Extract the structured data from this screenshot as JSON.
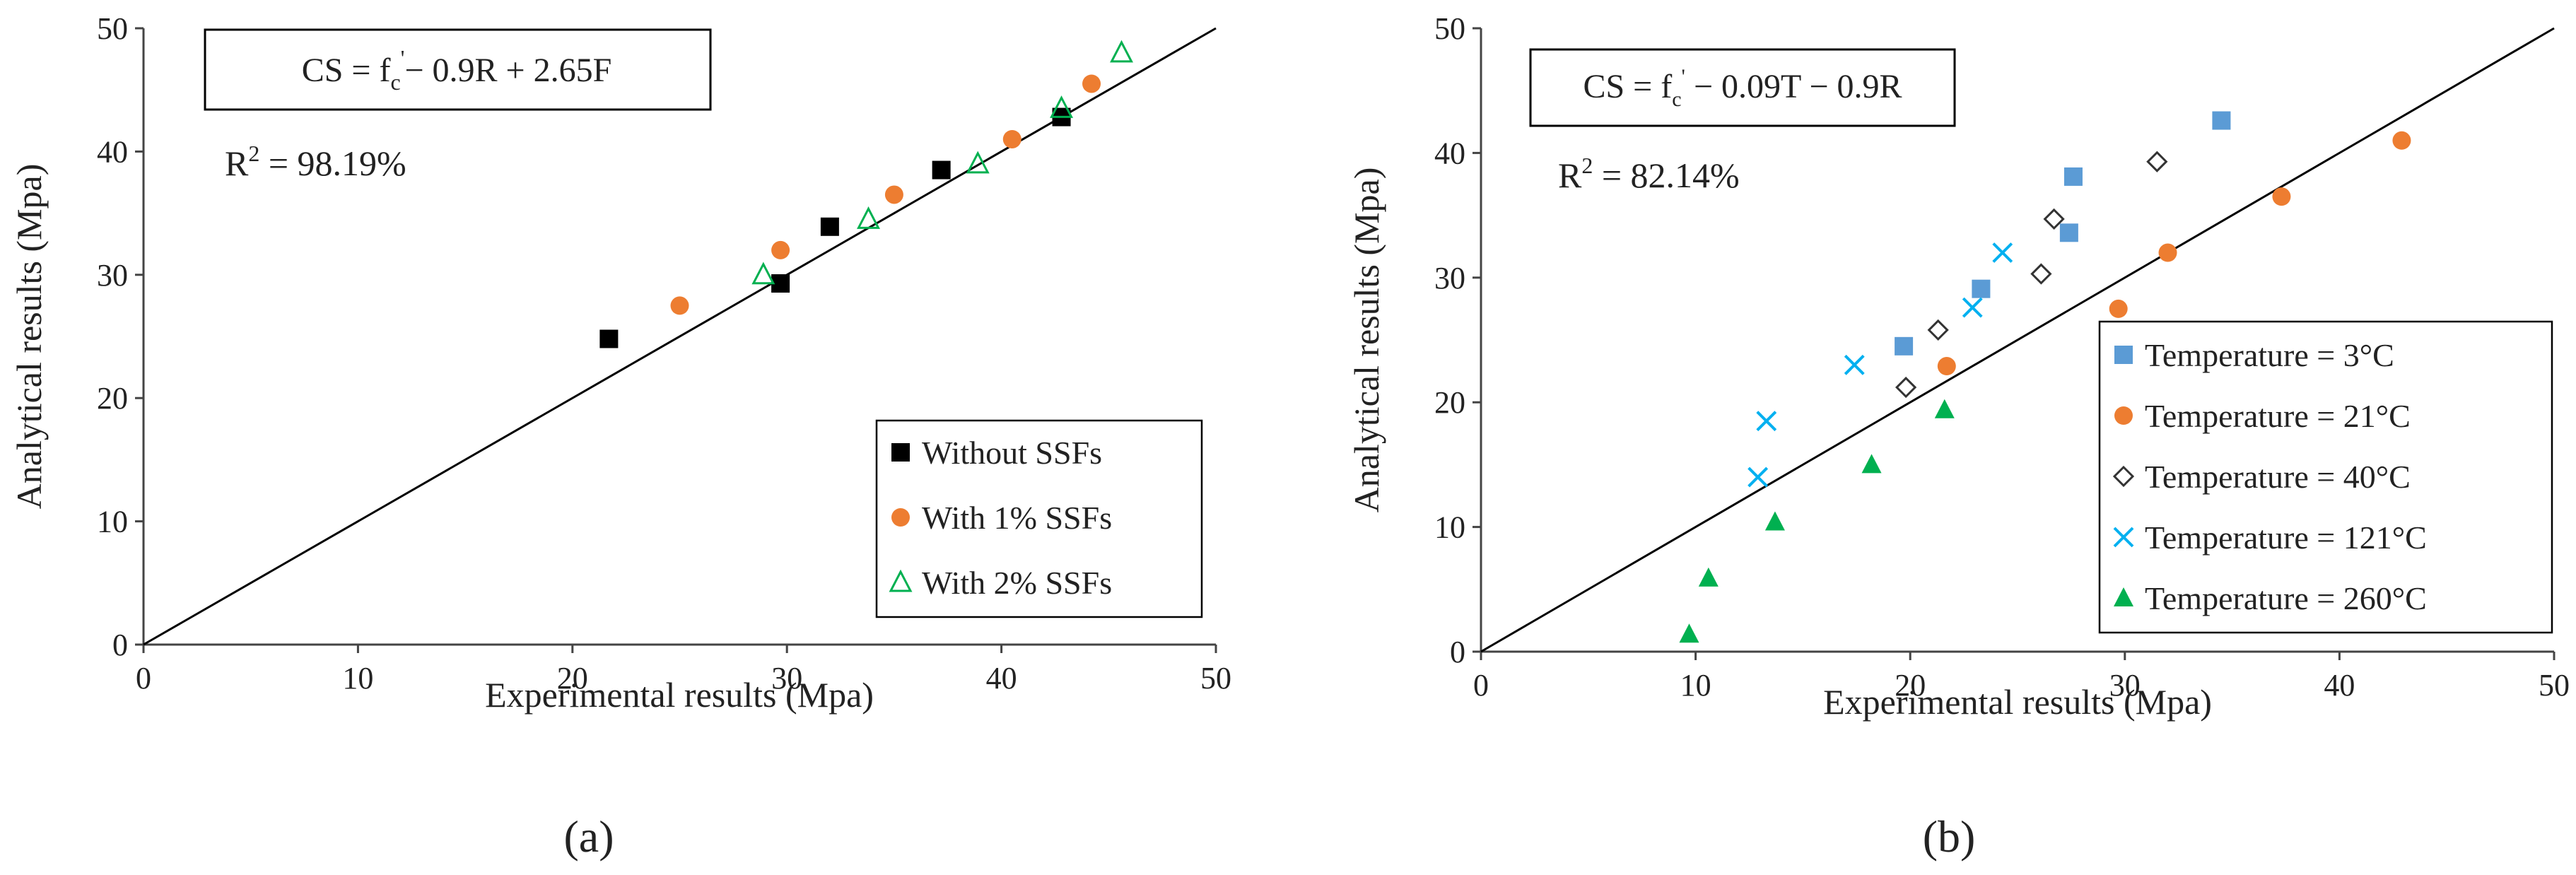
{
  "chart_data": [
    {
      "type": "scatter",
      "panel_label": "(a)",
      "xlabel": "Experimental results (Mpa)",
      "ylabel": "Analytical results (Mpa)",
      "xlim": [
        0,
        50
      ],
      "ylim": [
        0,
        50
      ],
      "xticks": [
        "0",
        "10",
        "20",
        "30",
        "40",
        "50"
      ],
      "yticks": [
        "0",
        "10",
        "20",
        "30",
        "40",
        "50"
      ],
      "grid": false,
      "legend_position": "bottom-right",
      "equation": {
        "main": "CS = f",
        "sub": "c",
        "sup": "'",
        "rest": "− 0.9R + 2.65F"
      },
      "r2": {
        "base": "R",
        "sup": "2",
        "rest": " = 98.19%"
      },
      "reference_line": [
        [
          0,
          0
        ],
        [
          50,
          50
        ]
      ],
      "series": [
        {
          "name": "Without SSFs",
          "marker": "square",
          "color": "#000000",
          "x": [
            21.7,
            29.7,
            32,
            37.2,
            42.8
          ],
          "y": [
            24.8,
            29.3,
            33.9,
            38.5,
            42.8
          ]
        },
        {
          "name": "With 1% SSFs",
          "marker": "circle",
          "color": "#ED7D31",
          "x": [
            25,
            29.7,
            35,
            40.5,
            44.2
          ],
          "y": [
            27.5,
            32,
            36.5,
            41,
            45.5
          ]
        },
        {
          "name": "With 2% SSFs",
          "marker": "triangle-open",
          "color": "#00B050",
          "x": [
            28.9,
            33.8,
            38.9,
            42.8,
            45.6
          ],
          "y": [
            30,
            34.5,
            39,
            43.5,
            48
          ]
        }
      ]
    },
    {
      "type": "scatter",
      "panel_label": "(b)",
      "xlabel": "Experimental results (Mpa)",
      "ylabel": "Analytical results (Mpa)",
      "xlim": [
        0,
        50
      ],
      "ylim": [
        0,
        50
      ],
      "xticks": [
        "0",
        "10",
        "20",
        "30",
        "40",
        "50"
      ],
      "yticks": [
        "0",
        "10",
        "20",
        "30",
        "40",
        "50"
      ],
      "grid": false,
      "legend_position": "bottom-right",
      "equation": {
        "main": "CS = f",
        "sub": "c",
        "sup": "'",
        "rest": " − 0.09T − 0.9R"
      },
      "r2": {
        "base": "R",
        "sup": "2",
        "rest": " = 82.14%"
      },
      "reference_line": [
        [
          0,
          0
        ],
        [
          50,
          50
        ]
      ],
      "series": [
        {
          "name": "Temperature = 3°C",
          "marker": "square",
          "color": "#5B9BD5",
          "x": [
            19.7,
            23.3,
            27.4,
            27.6,
            34.5
          ],
          "y": [
            24.5,
            29.1,
            33.6,
            38.1,
            42.6
          ]
        },
        {
          "name": "Temperature = 21°C",
          "marker": "circle",
          "color": "#ED7D31",
          "x": [
            21.7,
            29.7,
            32,
            37.3,
            42.9
          ],
          "y": [
            22.9,
            27.5,
            32,
            36.5,
            41
          ]
        },
        {
          "name": "Temperature = 40°C",
          "marker": "diamond-open",
          "color": "#333333",
          "x": [
            19.8,
            21.3,
            26.1,
            26.7,
            31.5
          ],
          "y": [
            21.2,
            25.8,
            30.3,
            34.7,
            39.3
          ]
        },
        {
          "name": "Temperature = 121°C",
          "marker": "x",
          "color": "#00B0F0",
          "x": [
            12.9,
            13.3,
            17.4,
            22.9,
            24.3
          ],
          "y": [
            14,
            18.5,
            23,
            27.6,
            32
          ]
        },
        {
          "name": "Temperature = 260°C",
          "marker": "triangle",
          "color": "#00B050",
          "x": [
            9.7,
            10.6,
            13.7,
            18.2,
            21.6
          ],
          "y": [
            1.4,
            5.9,
            10.4,
            15,
            19.4
          ]
        }
      ]
    }
  ]
}
